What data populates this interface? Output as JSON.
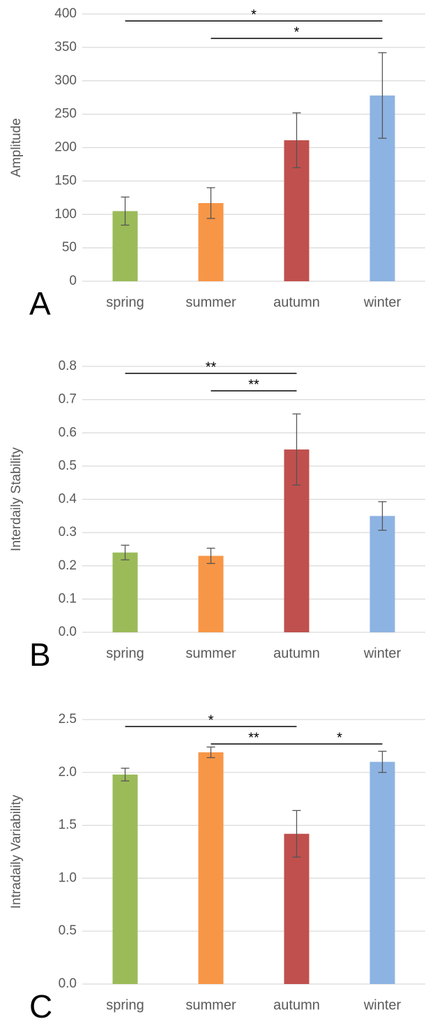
{
  "chart_data": [
    {
      "type": "bar",
      "panel_label": "A",
      "y_label": "Amplitude",
      "categories": [
        "spring",
        "summer",
        "autumn",
        "winter"
      ],
      "values": [
        105,
        117,
        211,
        278
      ],
      "errors": [
        21,
        23,
        41,
        64
      ],
      "colors": [
        "#9bbb59",
        "#f79646",
        "#c0504d",
        "#8db3e2"
      ],
      "ylim": [
        0,
        400
      ],
      "yticks": [
        0,
        50,
        100,
        150,
        200,
        250,
        300,
        350,
        400
      ],
      "grid": true,
      "significance": [
        [
          {
            "from": "spring",
            "to": "winter",
            "label": "*"
          }
        ],
        [
          {
            "from": "summer",
            "to": "winter",
            "label": "*"
          }
        ]
      ]
    },
    {
      "type": "bar",
      "panel_label": "B",
      "y_label": "Interdaily Stability",
      "categories": [
        "spring",
        "summer",
        "autumn",
        "winter"
      ],
      "values": [
        0.24,
        0.23,
        0.55,
        0.35
      ],
      "errors": [
        0.022,
        0.023,
        0.107,
        0.043
      ],
      "colors": [
        "#9bbb59",
        "#f79646",
        "#c0504d",
        "#8db3e2"
      ],
      "ylim": [
        0,
        0.8
      ],
      "yticks": [
        {
          "value": 0,
          "label": "0.0"
        },
        0.1,
        0.2,
        0.3,
        0.4,
        0.5,
        0.6,
        0.7,
        0.8
      ],
      "grid": true,
      "significance": [
        [
          {
            "from": "spring",
            "to": "autumn",
            "label": "**"
          }
        ],
        [
          {
            "from": "summer",
            "to": "autumn",
            "label": "**"
          }
        ]
      ]
    },
    {
      "type": "bar",
      "panel_label": "C",
      "y_label": "Intradaily Variability",
      "categories": [
        "spring",
        "summer",
        "autumn",
        "winter"
      ],
      "values": [
        1.98,
        2.19,
        1.42,
        2.1
      ],
      "errors": [
        0.06,
        0.05,
        0.22,
        0.1
      ],
      "colors": [
        "#9bbb59",
        "#f79646",
        "#c0504d",
        "#8db3e2"
      ],
      "ylim": [
        0,
        2.5
      ],
      "yticks": [
        {
          "value": 0,
          "label": "0.0"
        },
        0.5,
        {
          "value": 1,
          "label": "1.0"
        },
        1.5,
        {
          "value": 2,
          "label": "2.0"
        },
        2.5
      ],
      "grid": true,
      "significance": [
        [
          {
            "from": "spring",
            "to": "autumn",
            "label": "*"
          }
        ],
        [
          {
            "from": "summer",
            "to": "autumn",
            "label": "**"
          },
          {
            "from": "autumn",
            "to": "winter",
            "label": "*"
          }
        ]
      ]
    }
  ]
}
